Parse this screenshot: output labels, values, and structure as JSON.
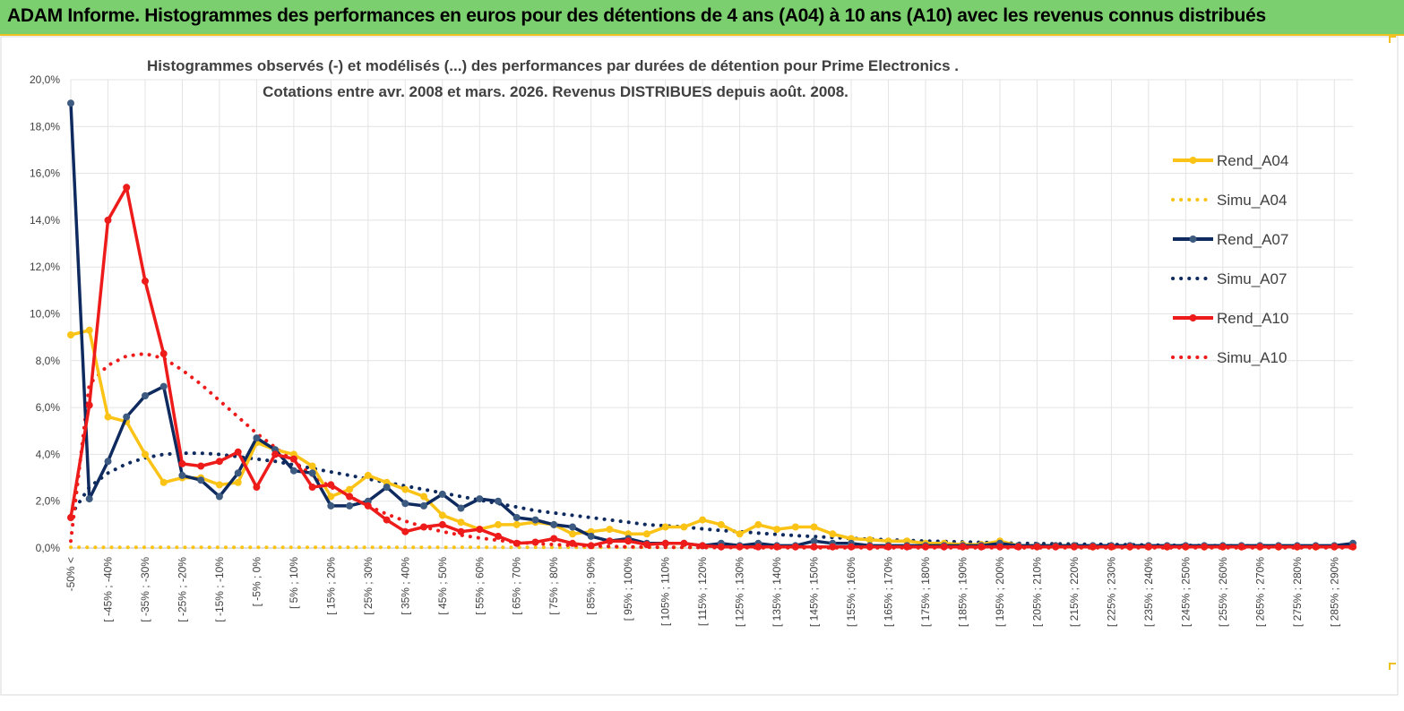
{
  "banner": {
    "title": "ADAM Informe. Histogrammes des performances en euros pour des détentions de 4 ans (A04) à 10 ans (A10) avec les revenus connus distribués"
  },
  "chart_data": {
    "type": "line",
    "title": "Histogrammes observés (-) et modélisés (...) des performances par durées de détention pour Prime Electronics .",
    "subtitle": "Cotations entre avr. 2008 et mars. 2026. Revenus DISTRIBUES depuis août. 2008.",
    "ylim": [
      0,
      20
    ],
    "y_ticks": [
      "0,0%",
      "2,0%",
      "4,0%",
      "6,0%",
      "8,0%",
      "10,0%",
      "12,0%",
      "14,0%",
      "16,0%",
      "18,0%",
      "20,0%"
    ],
    "grid": true,
    "legend_position": "right",
    "x_tick_labels": [
      "-50% <",
      "[ -45% ; -40%",
      "[ -35% ; -30%",
      "[ -25% ; -20%",
      "[ -15% ; -10%",
      "[ -5% ; 0%",
      "[ 5% ; 10%",
      "[ 15% ; 20%",
      "[ 25% ; 30%",
      "[ 35% ; 40%",
      "[ 45% ; 50%",
      "[ 55% ; 60%",
      "[ 65% ; 70%",
      "[ 75% ; 80%",
      "[ 85% ; 90%",
      "[ 95% ; 100%",
      "[ 105% ; 110%",
      "[ 115% ; 120%",
      "[ 125% ; 130%",
      "[ 135% ; 140%",
      "[ 145% ; 150%",
      "[ 155% ; 160%",
      "[ 165% ; 170%",
      "[ 175% ; 180%",
      "[ 185% ; 190%",
      "[ 195% ; 200%",
      "[ 205% ; 210%",
      "[ 215% ; 220%",
      "[ 225% ; 230%",
      "[ 235% ; 240%",
      "[ 245% ; 250%",
      "[ 255% ; 260%",
      "[ 265% ; 270%",
      "[ 275% ; 280%",
      "[ 285% ; 290%"
    ],
    "series": [
      {
        "name": "Rend_A04",
        "style": "solid",
        "color": "#fbc316",
        "values": [
          9.1,
          9.3,
          5.6,
          5.4,
          4.0,
          2.8,
          3.0,
          3.0,
          2.7,
          2.8,
          4.5,
          4.2,
          4.0,
          3.5,
          2.2,
          2.5,
          3.1,
          2.8,
          2.5,
          2.2,
          1.4,
          1.1,
          0.8,
          1.0,
          1.0,
          1.1,
          1.0,
          0.6,
          0.7,
          0.8,
          0.6,
          0.6,
          0.9,
          0.9,
          1.2,
          1.0,
          0.6,
          1.0,
          0.8,
          0.9,
          0.9,
          0.6,
          0.4,
          0.35,
          0.3,
          0.3,
          0.2,
          0.2,
          0.15,
          0.15,
          0.3,
          0.1,
          0.1,
          0.1,
          0.1,
          0.05,
          0.05,
          0.05,
          0.05,
          0.05,
          0.05,
          0.05,
          0.05,
          0.05,
          0.05,
          0.05,
          0.05,
          0.05,
          0.05,
          0.05
        ]
      },
      {
        "name": "Simu_A04",
        "style": "dotted",
        "color": "#fbc316",
        "values": [
          0.03,
          0.03,
          0.03,
          0.03,
          0.03,
          0.03,
          0.03,
          0.03,
          0.03,
          0.03,
          0.03,
          0.03,
          0.03,
          0.03,
          0.03,
          0.03,
          0.03,
          0.03,
          0.03,
          0.03,
          0.03,
          0.03,
          0.03,
          0.03,
          0.03,
          0.03,
          0.03,
          0.03,
          0.03,
          0.03,
          0.03,
          0.03,
          0.03,
          0.03,
          0.03,
          0.03,
          0.03,
          0.03,
          0.03,
          0.03,
          0.03,
          0.03,
          0.03,
          0.03,
          0.03,
          0.03,
          0.03,
          0.03,
          0.03,
          0.03,
          0.03,
          0.03,
          0.03,
          0.03,
          0.03,
          0.03,
          0.03,
          0.03,
          0.03,
          0.03,
          0.03,
          0.03,
          0.03,
          0.03,
          0.03,
          0.03,
          0.03,
          0.03,
          0.03,
          0.03
        ]
      },
      {
        "name": "Rend_A07",
        "style": "solid",
        "color": "#0e2a5e",
        "values": [
          19.0,
          2.1,
          3.7,
          5.6,
          6.5,
          6.9,
          3.1,
          2.9,
          2.2,
          3.2,
          4.7,
          4.2,
          3.3,
          3.2,
          1.8,
          1.8,
          2.0,
          2.6,
          1.9,
          1.8,
          2.3,
          1.7,
          2.1,
          2.0,
          1.3,
          1.2,
          1.0,
          0.9,
          0.5,
          0.3,
          0.4,
          0.2,
          0.2,
          0.2,
          0.1,
          0.2,
          0.1,
          0.2,
          0.1,
          0.1,
          0.3,
          0.2,
          0.2,
          0.1,
          0.1,
          0.1,
          0.1,
          0.1,
          0.1,
          0.1,
          0.2,
          0.1,
          0.1,
          0.1,
          0.1,
          0.1,
          0.1,
          0.1,
          0.1,
          0.1,
          0.1,
          0.1,
          0.1,
          0.1,
          0.1,
          0.1,
          0.1,
          0.1,
          0.1,
          0.2
        ]
      },
      {
        "name": "Simu_A07",
        "style": "dotted",
        "color": "#0e2a5e",
        "values": [
          1.4,
          2.6,
          3.2,
          3.6,
          3.85,
          4.0,
          4.05,
          4.05,
          4.0,
          3.9,
          3.8,
          3.7,
          3.55,
          3.4,
          3.25,
          3.1,
          2.95,
          2.8,
          2.65,
          2.5,
          2.35,
          2.2,
          2.05,
          1.9,
          1.75,
          1.6,
          1.5,
          1.4,
          1.3,
          1.2,
          1.1,
          1.0,
          0.95,
          0.9,
          0.82,
          0.75,
          0.7,
          0.64,
          0.58,
          0.53,
          0.49,
          0.45,
          0.41,
          0.38,
          0.35,
          0.32,
          0.3,
          0.28,
          0.26,
          0.24,
          0.22,
          0.2,
          0.19,
          0.18,
          0.17,
          0.16,
          0.15,
          0.14,
          0.13,
          0.12,
          0.11,
          0.1,
          0.1,
          0.09,
          0.09,
          0.08,
          0.08,
          0.07,
          0.07,
          0.07
        ]
      },
      {
        "name": "Rend_A10",
        "style": "solid",
        "color": "#ee1b1b",
        "values": [
          1.3,
          6.1,
          14.0,
          15.4,
          11.4,
          8.3,
          3.6,
          3.5,
          3.7,
          4.1,
          2.6,
          4.0,
          3.8,
          2.6,
          2.7,
          2.2,
          1.8,
          1.2,
          0.7,
          0.9,
          1.0,
          0.7,
          0.8,
          0.5,
          0.2,
          0.25,
          0.4,
          0.2,
          0.1,
          0.3,
          0.3,
          0.15,
          0.2,
          0.2,
          0.1,
          0.05,
          0.05,
          0.05,
          0.05,
          0.05,
          0.05,
          0.05,
          0.05,
          0.05,
          0.05,
          0.05,
          0.05,
          0.05,
          0.05,
          0.05,
          0.05,
          0.05,
          0.05,
          0.05,
          0.05,
          0.05,
          0.05,
          0.05,
          0.05,
          0.05,
          0.05,
          0.05,
          0.05,
          0.05,
          0.05,
          0.05,
          0.05,
          0.05,
          0.05,
          0.05
        ]
      },
      {
        "name": "Simu_A10",
        "style": "dotted",
        "color": "#ee1b1b",
        "values": [
          0.3,
          7.0,
          7.8,
          8.2,
          8.3,
          8.1,
          7.6,
          7.0,
          6.3,
          5.6,
          4.9,
          4.3,
          3.7,
          3.1,
          2.6,
          2.2,
          1.8,
          1.45,
          1.15,
          0.9,
          0.7,
          0.55,
          0.43,
          0.33,
          0.25,
          0.19,
          0.15,
          0.11,
          0.09,
          0.07,
          0.05,
          0.04,
          0.03,
          0.03,
          0.02,
          0.02,
          0.02,
          0.01,
          0.01,
          0.01,
          0.01,
          0.01,
          0.01,
          0.01,
          0.01,
          0.01,
          0.01,
          0.01,
          0.01,
          0.01,
          0.01,
          0.01,
          0.01,
          0.01,
          0.01,
          0.01,
          0.01,
          0.01,
          0.01,
          0.01,
          0.01,
          0.01,
          0.01,
          0.01,
          0.01,
          0.01,
          0.01,
          0.01,
          0.01,
          0.01
        ]
      }
    ]
  }
}
